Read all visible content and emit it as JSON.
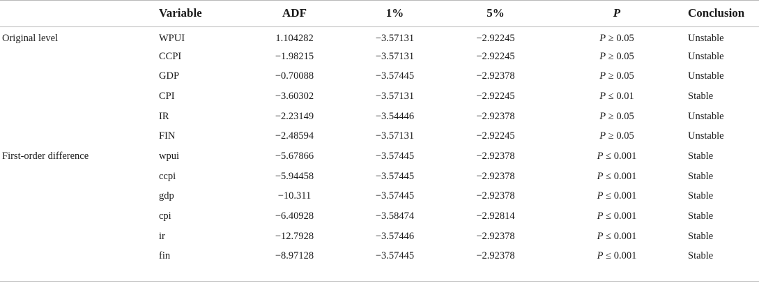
{
  "table": {
    "headers": {
      "group": "",
      "variable": "Variable",
      "adf": "ADF",
      "pct1": "1%",
      "pct5": "5%",
      "p": "P",
      "conclusion": "Conclusion"
    },
    "rows": [
      {
        "group": "Original level",
        "variable": "WPUI",
        "adf": "1.104282",
        "pct1": "−3.57131",
        "pct5": "−2.92245",
        "p_symbol": "P",
        "p_rel": " ≥ 0.05",
        "conclusion": "Unstable"
      },
      {
        "group": "",
        "variable": "CCPI",
        "adf": "−1.98215",
        "pct1": "−3.57131",
        "pct5": "−2.92245",
        "p_symbol": "P",
        "p_rel": " ≥ 0.05",
        "conclusion": "Unstable"
      },
      {
        "group": "",
        "variable": "GDP",
        "adf": "−0.70088",
        "pct1": "−3.57445",
        "pct5": "−2.92378",
        "p_symbol": "P",
        "p_rel": " ≥ 0.05",
        "conclusion": "Unstable"
      },
      {
        "group": "",
        "variable": "CPI",
        "adf": "−3.60302",
        "pct1": "−3.57131",
        "pct5": "−2.92245",
        "p_symbol": "P",
        "p_rel": " ≤ 0.01",
        "conclusion": "Stable"
      },
      {
        "group": "",
        "variable": "IR",
        "adf": "−2.23149",
        "pct1": "−3.54446",
        "pct5": "−2.92378",
        "p_symbol": "P",
        "p_rel": " ≥ 0.05",
        "conclusion": "Unstable"
      },
      {
        "group": "",
        "variable": "FIN",
        "adf": "−2.48594",
        "pct1": "−3.57131",
        "pct5": "−2.92245",
        "p_symbol": "P",
        "p_rel": " ≥ 0.05",
        "conclusion": "Unstable"
      },
      {
        "group": "First-order difference",
        "variable": "wpui",
        "adf": "−5.67866",
        "pct1": "−3.57445",
        "pct5": "−2.92378",
        "p_symbol": "P",
        "p_rel": " ≤ 0.001",
        "conclusion": "Stable"
      },
      {
        "group": "",
        "variable": "ccpi",
        "adf": "−5.94458",
        "pct1": "−3.57445",
        "pct5": "−2.92378",
        "p_symbol": "P",
        "p_rel": " ≤ 0.001",
        "conclusion": "Stable"
      },
      {
        "group": "",
        "variable": "gdp",
        "adf": "−10.311",
        "pct1": "−3.57445",
        "pct5": "−2.92378",
        "p_symbol": "P",
        "p_rel": " ≤ 0.001",
        "conclusion": "Stable"
      },
      {
        "group": "",
        "variable": "cpi",
        "adf": "−6.40928",
        "pct1": "−3.58474",
        "pct5": "−2.92814",
        "p_symbol": "P",
        "p_rel": " ≤ 0.001",
        "conclusion": "Stable"
      },
      {
        "group": "",
        "variable": "ir",
        "adf": "−12.7928",
        "pct1": "−3.57446",
        "pct5": "−2.92378",
        "p_symbol": "P",
        "p_rel": " ≤ 0.001",
        "conclusion": "Stable"
      },
      {
        "group": "",
        "variable": "fin",
        "adf": "−8.97128",
        "pct1": "−3.57445",
        "pct5": "−2.92378",
        "p_symbol": "P",
        "p_rel": " ≤ 0.001",
        "conclusion": "Stable"
      }
    ]
  }
}
